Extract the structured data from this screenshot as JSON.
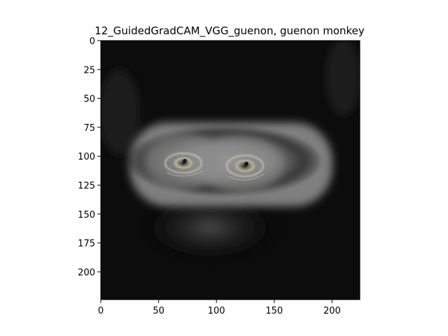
{
  "title": "12_GuidedGradCAM_VGG_guenon, guenon monkey",
  "axes": {
    "x_ticks": [
      "0",
      "50",
      "100",
      "150",
      "200"
    ],
    "y_ticks": [
      "0",
      "25",
      "50",
      "75",
      "100",
      "125",
      "150",
      "175",
      "200"
    ],
    "xlim": [
      0,
      224
    ],
    "ylim": [
      224,
      0
    ]
  },
  "image": {
    "description_colors": {
      "background": "#000000",
      "glow": "#9a9a9a",
      "eye_ring": "#c9c9b0"
    }
  }
}
